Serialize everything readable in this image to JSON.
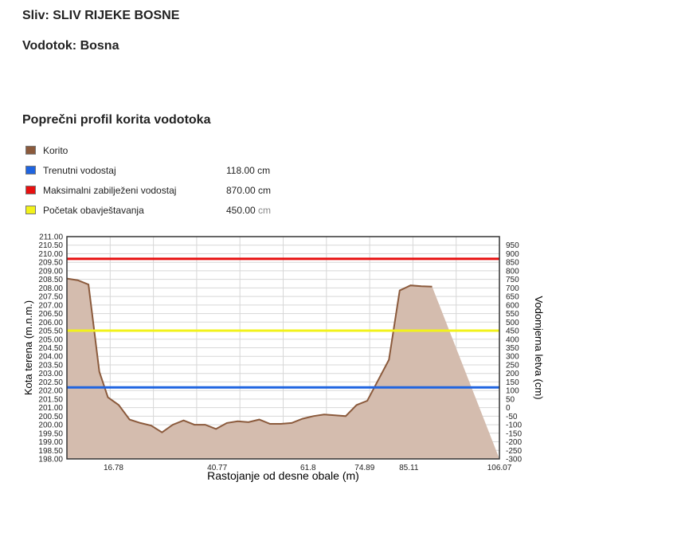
{
  "header": {
    "sliv": "Sliv: SLIV RIJEKE BOSNE",
    "vodotok": "Vodotok: Bosna",
    "section_title": "Poprečni profil korita vodotoka"
  },
  "legend": [
    {
      "label": "Korito",
      "value": "",
      "color": "#8b5a3c"
    },
    {
      "label": "Trenutni vodostaj",
      "value": "118.00 cm",
      "color": "#1f64e0"
    },
    {
      "label": "Maksimalni zabilježeni vodostaj",
      "value": "870.00 cm",
      "color": "#e81010"
    },
    {
      "label": "Početak obavještavanja",
      "value": "450.00",
      "unit": "cm",
      "color": "#f2f21a"
    }
  ],
  "chart_data": {
    "type": "area",
    "xlabel": "Rastojanje od desne obale (m)",
    "ylabel": "Kota terena (m.n.m.)",
    "y2label": "Vodomjerna letva (cm)",
    "xlim": [
      6.0,
      106.07
    ],
    "ylim": [
      198.0,
      211.0
    ],
    "x_tick_labels": [
      "16.78",
      "40.77",
      "61.8",
      "74.89",
      "85.11",
      "106.07"
    ],
    "y_ticks": [
      "198.00",
      "198.50",
      "199.00",
      "199.50",
      "200.00",
      "200.50",
      "201.00",
      "201.50",
      "202.00",
      "202.50",
      "203.00",
      "203.50",
      "204.00",
      "204.50",
      "205.00",
      "205.50",
      "206.00",
      "206.50",
      "207.00",
      "207.50",
      "208.00",
      "208.50",
      "209.00",
      "209.50",
      "210.00",
      "210.50",
      "211.00"
    ],
    "y2_ticks": [
      "-300",
      "-250",
      "-200",
      "-150",
      "-100",
      "-50",
      "0",
      "50",
      "100",
      "150",
      "200",
      "250",
      "300",
      "350",
      "400",
      "450",
      "500",
      "550",
      "600",
      "650",
      "700",
      "750",
      "800",
      "850",
      "900",
      "950"
    ],
    "y2_zero_elevation": 201.0,
    "fill_color": "#d4bcae",
    "line_color": "#8b5a3c",
    "terrain": [
      [
        6.0,
        208.55
      ],
      [
        8.5,
        208.45
      ],
      [
        11.0,
        208.2
      ],
      [
        13.5,
        203.1
      ],
      [
        15.5,
        201.6
      ],
      [
        18.0,
        201.15
      ],
      [
        20.5,
        200.3
      ],
      [
        23.0,
        200.1
      ],
      [
        25.5,
        199.95
      ],
      [
        28.0,
        199.55
      ],
      [
        30.5,
        200.0
      ],
      [
        33.0,
        200.25
      ],
      [
        35.5,
        200.0
      ],
      [
        38.0,
        200.0
      ],
      [
        40.5,
        199.75
      ],
      [
        43.0,
        200.1
      ],
      [
        45.5,
        200.2
      ],
      [
        48.0,
        200.15
      ],
      [
        50.5,
        200.3
      ],
      [
        53.0,
        200.05
      ],
      [
        55.5,
        200.05
      ],
      [
        58.0,
        200.1
      ],
      [
        60.5,
        200.35
      ],
      [
        63.0,
        200.5
      ],
      [
        65.5,
        200.6
      ],
      [
        68.0,
        200.55
      ],
      [
        70.5,
        200.5
      ],
      [
        73.0,
        201.15
      ],
      [
        75.5,
        201.4
      ],
      [
        78.0,
        202.6
      ],
      [
        80.5,
        203.8
      ],
      [
        83.0,
        207.85
      ],
      [
        85.5,
        208.15
      ],
      [
        88.0,
        208.1
      ],
      [
        90.5,
        208.08
      ]
    ],
    "levels": [
      {
        "name": "Trenutni vodostaj",
        "elevation": 202.18,
        "color": "#1f64e0"
      },
      {
        "name": "Maksimalni zabilježeni vodostaj",
        "elevation": 209.7,
        "color": "#e81010"
      },
      {
        "name": "Početak obavještavanja",
        "elevation": 205.5,
        "color": "#f2f21a"
      }
    ]
  }
}
